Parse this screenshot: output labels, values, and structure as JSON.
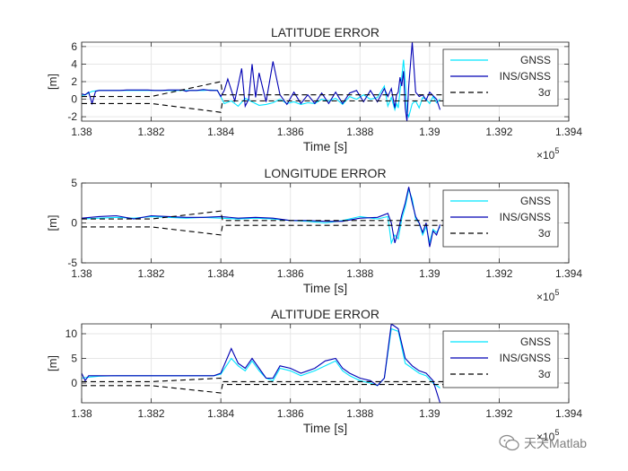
{
  "chart_data": [
    {
      "type": "line",
      "title": "LATITUDE ERROR",
      "xlabel": "Time [s]",
      "ylabel": "[m]",
      "xlim": [
        138000,
        139400
      ],
      "ylim": [
        -2.5,
        6.5
      ],
      "x_ticks": [
        "1.38",
        "1.382",
        "1.384",
        "1.386",
        "1.388",
        "1.39",
        "1.392",
        "1.394"
      ],
      "y_ticks": [
        "-2",
        "0",
        "2",
        "4",
        "6"
      ],
      "x_exponent_label": "×10",
      "x_exponent_power": "5",
      "grid": true,
      "legend_position": "top-right",
      "legend": [
        "GNSS",
        "INS/GNSS",
        "3σ"
      ],
      "series": [
        {
          "name": "GNSS",
          "color": "#00e5ff",
          "dash": "solid",
          "x": [
            138000,
            138010,
            138020,
            138030,
            138050,
            138070,
            138090,
            138110,
            138130,
            138150,
            138170,
            138190,
            138210,
            138230,
            138250,
            138270,
            138290,
            138310,
            138330,
            138350,
            138370,
            138390,
            138410,
            138430,
            138450,
            138470,
            138490,
            138510,
            138530,
            138550,
            138570,
            138590,
            138610,
            138630,
            138650,
            138670,
            138690,
            138710,
            138730,
            138750,
            138770,
            138790,
            138810,
            138830,
            138850,
            138870,
            138880,
            138890,
            138900,
            138905,
            138910,
            138915,
            138920,
            138925,
            138930,
            138935,
            138940,
            138950,
            138960,
            138970,
            138980,
            138990,
            139000,
            139010,
            139020,
            139030
          ],
          "y": [
            0.4,
            0.5,
            0.7,
            0.9,
            1.0,
            1.0,
            1.0,
            1.0,
            1.0,
            1.0,
            1.0,
            1.0,
            1.0,
            1.0,
            1.0,
            1.0,
            1.0,
            1.0,
            1.0,
            1.0,
            1.05,
            1.0,
            -0.5,
            -0.2,
            -0.8,
            0.1,
            -0.3,
            -0.7,
            -0.6,
            -0.4,
            0.0,
            -0.5,
            -0.3,
            -0.6,
            -0.4,
            -0.5,
            0.0,
            -0.2,
            0.1,
            -0.6,
            0.3,
            0.0,
            0.5,
            0.0,
            0.2,
            1.5,
            -0.8,
            0.2,
            -1.2,
            -0.5,
            -1.0,
            1.0,
            2.5,
            4.5,
            2.0,
            -1.5,
            -2.0,
            -0.5,
            -0.2,
            -1.0,
            0.2,
            0.0,
            -0.5,
            0.3,
            -0.4,
            0.0
          ]
        },
        {
          "name": "INS/GNSS",
          "color": "#0000b4",
          "dash": "solid",
          "x": [
            138000,
            138010,
            138020,
            138030,
            138040,
            138050,
            138070,
            138090,
            138110,
            138130,
            138150,
            138170,
            138190,
            138210,
            138230,
            138250,
            138270,
            138290,
            138300,
            138310,
            138330,
            138350,
            138370,
            138380,
            138390,
            138400,
            138410,
            138420,
            138440,
            138460,
            138470,
            138480,
            138490,
            138500,
            138510,
            138530,
            138550,
            138570,
            138590,
            138610,
            138630,
            138650,
            138670,
            138690,
            138710,
            138730,
            138750,
            138770,
            138790,
            138810,
            138830,
            138850,
            138870,
            138880,
            138890,
            138900,
            138905,
            138910,
            138915,
            138920,
            138925,
            138930,
            138935,
            138940,
            138950,
            138960,
            138970,
            138980,
            138990,
            139000,
            139010,
            139020,
            139030
          ],
          "y": [
            0.6,
            0.5,
            0.8,
            -0.5,
            0.9,
            1.0,
            1.0,
            1.0,
            1.0,
            1.05,
            1.05,
            1.05,
            1.05,
            1.0,
            1.0,
            1.05,
            1.05,
            1.05,
            0.9,
            1.0,
            1.0,
            1.1,
            1.0,
            1.0,
            1.0,
            0.3,
            1.0,
            2.3,
            -0.2,
            3.5,
            -0.8,
            0.0,
            4.0,
            0.2,
            3.0,
            -0.3,
            4.3,
            0.5,
            -0.6,
            0.8,
            -0.5,
            0.5,
            -0.5,
            0.7,
            -0.5,
            0.8,
            -0.5,
            0.7,
            1.0,
            -0.3,
            1.0,
            -0.3,
            1.2,
            0.3,
            1.2,
            -1.0,
            0.5,
            0.8,
            2.5,
            1.5,
            3.2,
            -1.0,
            -2.5,
            1.5,
            6.5,
            0.8,
            0.3,
            0.5,
            -0.1,
            0.8,
            0.4,
            0.0,
            -1.2
          ]
        },
        {
          "name": "3σ",
          "color": "#000000",
          "dash": "6,4",
          "x": [
            138000,
            138200,
            138400,
            138405,
            138800,
            139300
          ],
          "y": [
            -0.5,
            -0.5,
            -1.5,
            -0.2,
            -0.2,
            -0.2
          ]
        },
        {
          "name": "3σ (upper)",
          "color": "#000000",
          "dash": "6,4",
          "x": [
            138000,
            138200,
            138400,
            138405,
            138800,
            139300
          ],
          "y": [
            0.3,
            0.3,
            2.0,
            0.5,
            0.5,
            0.5
          ]
        }
      ]
    },
    {
      "type": "line",
      "title": "LONGITUDE ERROR",
      "xlabel": "Time [s]",
      "ylabel": "[m]",
      "xlim": [
        138000,
        139400
      ],
      "ylim": [
        -5,
        5
      ],
      "x_ticks": [
        "1.38",
        "1.382",
        "1.384",
        "1.386",
        "1.388",
        "1.39",
        "1.392",
        "1.394"
      ],
      "y_ticks": [
        "-5",
        "0",
        "5"
      ],
      "x_exponent_label": "×10",
      "x_exponent_power": "5",
      "grid": true,
      "legend_position": "top-right",
      "legend": [
        "GNSS",
        "INS/GNSS",
        "3σ"
      ],
      "series": [
        {
          "name": "GNSS",
          "color": "#00e5ff",
          "dash": "solid",
          "x": [
            138000,
            138050,
            138100,
            138150,
            138200,
            138250,
            138300,
            138350,
            138400,
            138450,
            138500,
            138550,
            138600,
            138650,
            138700,
            138750,
            138800,
            138850,
            138880,
            138890,
            138900,
            138910,
            138920,
            138930,
            138940,
            138950,
            138960,
            138970,
            138980,
            138990,
            139000,
            139010,
            139020,
            139030
          ],
          "y": [
            0.5,
            0.6,
            0.7,
            0.6,
            0.8,
            0.7,
            0.6,
            0.7,
            0.6,
            0.5,
            0.6,
            0.5,
            0.3,
            0.2,
            0.0,
            0.3,
            0.8,
            0.5,
            0.8,
            -2.5,
            -1.5,
            -2.0,
            0.5,
            2.0,
            4.2,
            3.0,
            0.5,
            0.0,
            -1.5,
            -0.5,
            -2.5,
            -0.8,
            -1.2,
            -0.5
          ]
        },
        {
          "name": "INS/GNSS",
          "color": "#0000b4",
          "dash": "solid",
          "x": [
            138000,
            138050,
            138100,
            138150,
            138200,
            138250,
            138300,
            138350,
            138400,
            138450,
            138500,
            138550,
            138600,
            138650,
            138700,
            138750,
            138800,
            138850,
            138880,
            138890,
            138900,
            138910,
            138920,
            138930,
            138940,
            138950,
            138960,
            138970,
            138980,
            138990,
            139000,
            139010,
            139020,
            139030
          ],
          "y": [
            0.6,
            0.8,
            0.9,
            0.5,
            0.9,
            0.8,
            0.7,
            0.7,
            0.8,
            0.6,
            0.7,
            0.6,
            0.3,
            0.3,
            0.2,
            0.2,
            0.6,
            0.7,
            1.2,
            0.0,
            -2.5,
            -1.0,
            1.0,
            2.5,
            4.5,
            2.5,
            0.8,
            0.0,
            -1.2,
            0.0,
            -3.0,
            -1.0,
            -1.5,
            -0.2
          ]
        },
        {
          "name": "3σ",
          "color": "#000000",
          "dash": "6,4",
          "x": [
            138000,
            138200,
            138400,
            138405,
            138800,
            139300
          ],
          "y": [
            -0.5,
            -0.5,
            -1.5,
            -0.3,
            -0.3,
            -0.3
          ]
        },
        {
          "name": "3σ (upper)",
          "color": "#000000",
          "dash": "6,4",
          "x": [
            138000,
            138200,
            138400,
            138405,
            138800,
            139300
          ],
          "y": [
            0.5,
            0.5,
            1.5,
            0.3,
            0.3,
            0.3
          ]
        }
      ]
    },
    {
      "type": "line",
      "title": "ALTITUDE ERROR",
      "xlabel": "Time [s]",
      "ylabel": "[m]",
      "xlim": [
        138000,
        139400
      ],
      "ylim": [
        -4,
        12
      ],
      "x_ticks": [
        "1.38",
        "1.382",
        "1.384",
        "1.386",
        "1.388",
        "1.39",
        "1.392",
        "1.394"
      ],
      "y_ticks": [
        "0",
        "5",
        "10"
      ],
      "x_exponent_label": "×10",
      "x_exponent_power": "5",
      "grid": true,
      "legend_position": "top-right",
      "legend": [
        "GNSS",
        "INS/GNSS",
        "3σ"
      ],
      "series": [
        {
          "name": "GNSS",
          "color": "#00e5ff",
          "dash": "solid",
          "x": [
            138000,
            138020,
            138050,
            138100,
            138150,
            138200,
            138250,
            138300,
            138350,
            138380,
            138400,
            138430,
            138450,
            138470,
            138490,
            138510,
            138530,
            138550,
            138570,
            138600,
            138630,
            138650,
            138670,
            138700,
            138730,
            138750,
            138770,
            138800,
            138830,
            138850,
            138870,
            138890,
            138910,
            138930,
            138950,
            138970,
            138990,
            139010,
            139030
          ],
          "y": [
            1.0,
            1.2,
            1.4,
            1.5,
            1.5,
            1.5,
            1.5,
            1.5,
            1.5,
            1.5,
            1.8,
            5.0,
            3.5,
            2.5,
            4.5,
            2.5,
            1.0,
            0.5,
            3.0,
            2.5,
            1.5,
            2.0,
            2.5,
            3.5,
            4.5,
            2.5,
            1.5,
            0.5,
            0.0,
            -0.5,
            1.0,
            11.0,
            10.5,
            4.0,
            3.0,
            2.0,
            1.5,
            0.0,
            -1.0
          ]
        },
        {
          "name": "INS/GNSS",
          "color": "#0000b4",
          "dash": "solid",
          "x": [
            138000,
            138010,
            138020,
            138050,
            138100,
            138150,
            138200,
            138250,
            138300,
            138350,
            138380,
            138400,
            138430,
            138450,
            138470,
            138490,
            138510,
            138530,
            138550,
            138570,
            138600,
            138630,
            138650,
            138670,
            138700,
            138730,
            138750,
            138770,
            138800,
            138830,
            138850,
            138870,
            138890,
            138910,
            138930,
            138950,
            138970,
            138990,
            139010,
            139030
          ],
          "y": [
            2.0,
            0.5,
            1.5,
            1.5,
            1.5,
            1.5,
            1.5,
            1.5,
            1.5,
            1.5,
            1.5,
            2.0,
            7.0,
            4.0,
            3.0,
            5.0,
            3.0,
            1.0,
            1.0,
            3.5,
            3.0,
            2.0,
            2.5,
            3.0,
            4.5,
            5.0,
            3.0,
            2.0,
            1.0,
            0.5,
            -0.5,
            1.0,
            12.0,
            11.0,
            5.0,
            3.5,
            2.5,
            2.0,
            0.5,
            -4.0
          ]
        },
        {
          "name": "3σ",
          "color": "#000000",
          "dash": "6,4",
          "x": [
            138000,
            138200,
            138400,
            138405,
            138800,
            139300
          ],
          "y": [
            -0.5,
            -0.5,
            -2.0,
            -0.3,
            -0.3,
            -0.3
          ]
        },
        {
          "name": "3σ (upper)",
          "color": "#000000",
          "dash": "6,4",
          "x": [
            138000,
            138200,
            138400,
            138405,
            138800,
            139300
          ],
          "y": [
            0.3,
            0.3,
            1.0,
            0.3,
            0.3,
            0.3
          ]
        }
      ]
    }
  ],
  "watermark": {
    "text": "天天Matlab",
    "icon": "wechat-icon"
  }
}
